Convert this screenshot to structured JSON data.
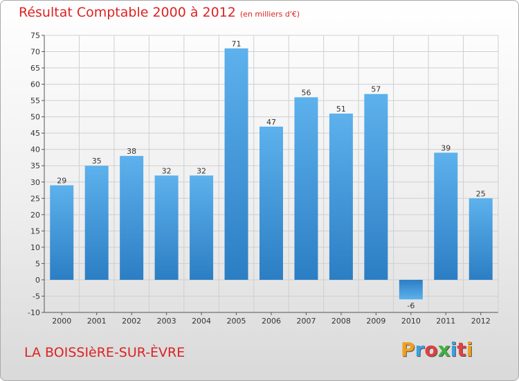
{
  "chart_data": {
    "type": "bar",
    "title": "Résultat Comptable 2000 à 2012",
    "subtitle": "(en milliers d'€)",
    "categories": [
      "2000",
      "2001",
      "2002",
      "2003",
      "2004",
      "2005",
      "2006",
      "2007",
      "2008",
      "2009",
      "2010",
      "2011",
      "2012"
    ],
    "values": [
      29,
      35,
      38,
      32,
      32,
      71,
      47,
      56,
      51,
      57,
      -6,
      39,
      25
    ],
    "ylim": [
      -10,
      75
    ],
    "yticks": [
      -10,
      -5,
      0,
      5,
      10,
      15,
      20,
      25,
      30,
      35,
      40,
      45,
      50,
      55,
      60,
      65,
      70,
      75
    ],
    "grid": true,
    "xlabel": "",
    "ylabel": "",
    "bar_color": "#4a9de0"
  },
  "footer": {
    "city": "LA BOISSIèRE-SUR-ÈVRE",
    "logo_letters": [
      {
        "ch": "P",
        "color": "#f0a020"
      },
      {
        "ch": "r",
        "color": "#3aa0e0"
      },
      {
        "ch": "o",
        "color": "#e04040"
      },
      {
        "ch": "x",
        "color": "#40b040"
      },
      {
        "ch": "i",
        "color": "#3aa0e0"
      },
      {
        "ch": "t",
        "color": "#e04040"
      },
      {
        "ch": "i",
        "color": "#f0a020"
      }
    ]
  }
}
